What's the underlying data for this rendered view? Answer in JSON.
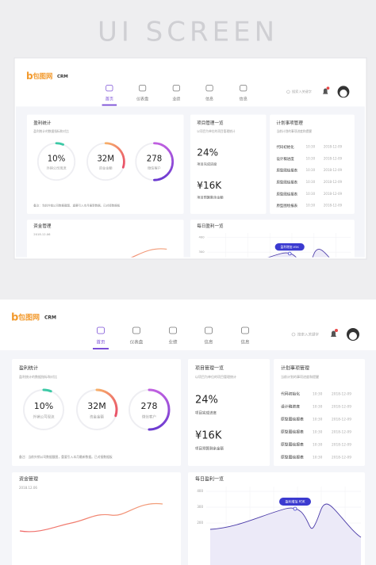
{
  "title": "UI SCREEN",
  "dashboard": {
    "logo_mark": "b",
    "logo": "包图网",
    "product": "CRM",
    "nav": [
      "首页",
      "仪表盘",
      "业绩",
      "信息",
      "信息"
    ],
    "search": "搜索入关键字",
    "profit": {
      "title": "盈利统计",
      "subtitle": "盈利统计的数据指标和对比",
      "rings": [
        {
          "value": "10%",
          "label": "外销公司现流"
        },
        {
          "value": "32M",
          "label": "资金金额"
        },
        {
          "value": "278",
          "label": "微信客户"
        }
      ],
      "note": "备注：当前外销公司数据截图，重要引入本月最新数据。已对接数据板"
    },
    "project": {
      "title": "项目管理一览",
      "subtitle": "以项目为单位的项目管理统计",
      "stats": [
        {
          "value": "24%",
          "label": "项目完成进度"
        },
        {
          "value": "¥16K",
          "label": "项目预算剩余金额"
        }
      ]
    },
    "plan": {
      "title": "计划事项管理",
      "subtitle": "当前计划的事项进度和提醒",
      "items": [
        {
          "name": "代码初始化",
          "time": "10:30",
          "date": "2018-12-09"
        },
        {
          "name": "设计稿进度",
          "time": "10:30",
          "date": "2018-12-09"
        },
        {
          "name": "原型图绘报表",
          "time": "10:30",
          "date": "2018-12-09"
        },
        {
          "name": "原型图绘报表",
          "time": "10:30",
          "date": "2018-12-09"
        },
        {
          "name": "原型图绘报表",
          "time": "10:30",
          "date": "2018-12-09"
        },
        {
          "name": "原型图绘报表",
          "time": "10:30",
          "date": "2018-12-09"
        }
      ]
    },
    "funds": {
      "title": "资金管理",
      "date": "2018.12.06"
    },
    "daily": {
      "title": "每日盈利一览",
      "yticks": [
        "400",
        "300",
        "200"
      ],
      "tooltip": "盈利增加 ¥5K"
    }
  }
}
